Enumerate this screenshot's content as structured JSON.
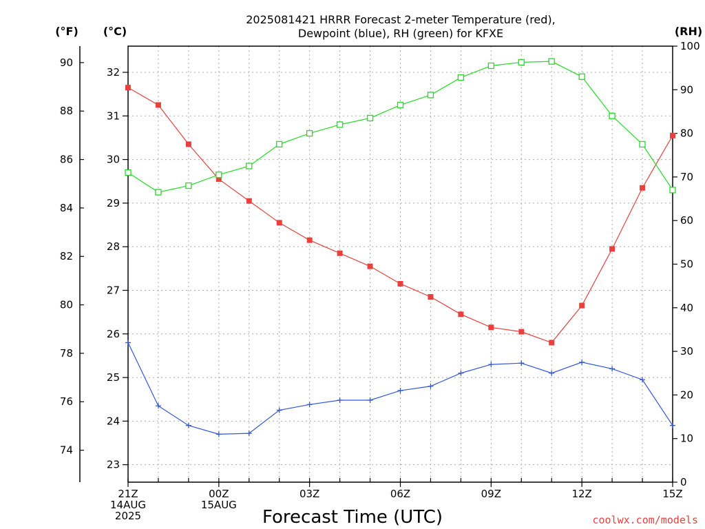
{
  "chart_data": {
    "type": "line",
    "title_line1": "2025081421 HRRR Forecast 2-meter Temperature (red),",
    "title_line2": "Dewpoint (blue), RH (green) for KFXE",
    "xlabel": "Forecast Time (UTC)",
    "credit": "coolwx.com/models",
    "units": {
      "fahrenheit": "(°F)",
      "celsius": "(°C)",
      "rh": "(RH)"
    },
    "x_hours": [
      0,
      1,
      2,
      3,
      4,
      5,
      6,
      7,
      8,
      9,
      10,
      11,
      12,
      13,
      14,
      15,
      16,
      17,
      18
    ],
    "x_ticks": [
      {
        "hour": 0,
        "lines": [
          "21Z",
          "14AUG",
          "2025"
        ]
      },
      {
        "hour": 3,
        "lines": [
          "00Z",
          "15AUG"
        ]
      },
      {
        "hour": 6,
        "lines": [
          "03Z"
        ]
      },
      {
        "hour": 9,
        "lines": [
          "06Z"
        ]
      },
      {
        "hour": 12,
        "lines": [
          "09Z"
        ]
      },
      {
        "hour": 15,
        "lines": [
          "12Z"
        ]
      },
      {
        "hour": 18,
        "lines": [
          "15Z"
        ]
      }
    ],
    "celsius_range": [
      22.6,
      32.6
    ],
    "celsius_ticks": [
      23,
      24,
      25,
      26,
      27,
      28,
      29,
      30,
      31,
      32
    ],
    "fahrenheit_ticks": [
      74,
      76,
      78,
      80,
      82,
      84,
      86,
      88,
      90
    ],
    "rh_range": [
      0,
      100
    ],
    "rh_ticks": [
      0,
      10,
      20,
      30,
      40,
      50,
      60,
      70,
      80,
      90,
      100
    ],
    "grid": true,
    "series": [
      {
        "name": "Temperature",
        "color": "#e8403c",
        "marker": "filled-square",
        "axis": "celsius",
        "values": [
          31.65,
          31.25,
          30.35,
          29.55,
          29.05,
          28.55,
          28.15,
          27.85,
          27.55,
          27.15,
          26.85,
          26.45,
          26.15,
          26.05,
          25.8,
          26.65,
          27.95,
          29.35,
          30.55
        ]
      },
      {
        "name": "Dewpoint",
        "color": "#3355dd",
        "marker": "plus",
        "axis": "celsius",
        "values": [
          25.8,
          24.35,
          23.9,
          23.7,
          23.72,
          24.25,
          24.38,
          24.48,
          24.48,
          24.7,
          24.8,
          25.1,
          25.3,
          25.33,
          25.1,
          25.35,
          25.2,
          24.95,
          23.9
        ]
      },
      {
        "name": "RH",
        "color": "#22dd22",
        "marker": "open-square",
        "axis": "rh",
        "values": [
          71,
          66.5,
          68,
          70.5,
          72.5,
          77.5,
          80,
          82,
          83.5,
          86.5,
          88.8,
          92.8,
          95.5,
          96.3,
          96.5,
          93,
          84,
          77.5,
          67
        ]
      }
    ]
  }
}
